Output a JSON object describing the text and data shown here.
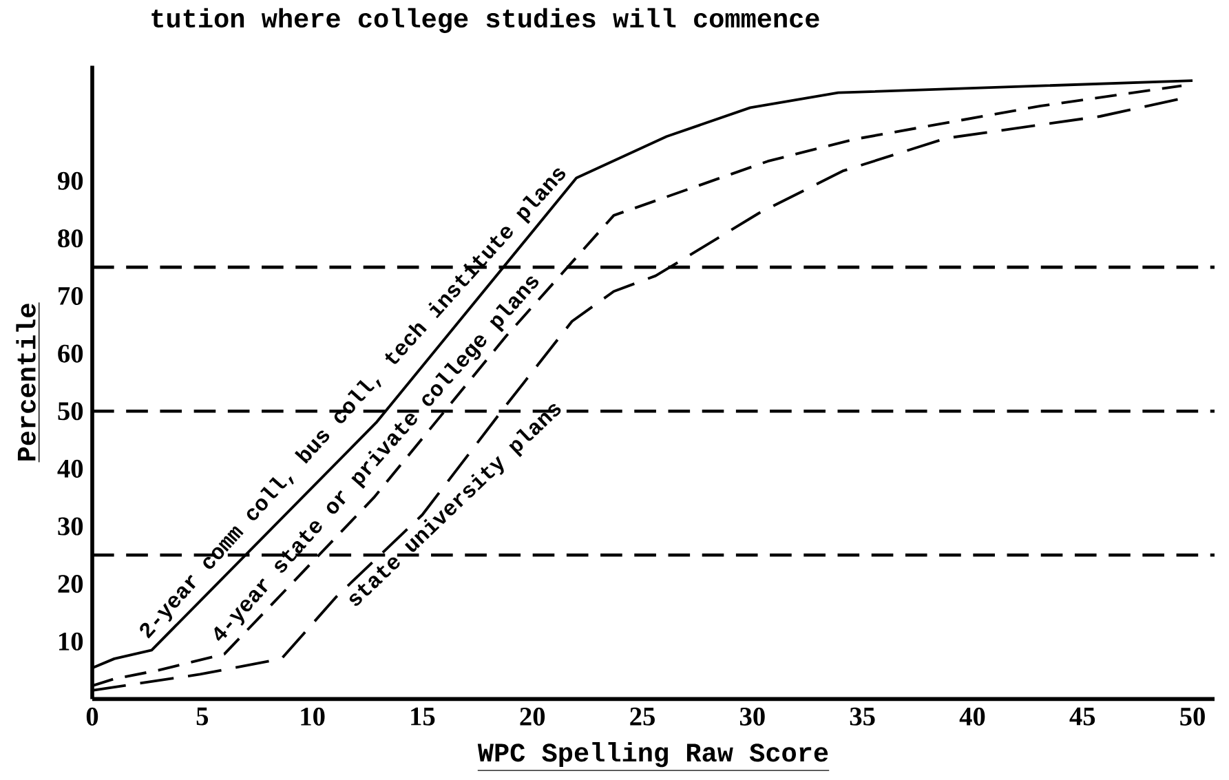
{
  "chart_data": {
    "type": "line",
    "title": "tution where college studies will commence",
    "xlabel": "WPC Spelling Raw Score",
    "ylabel": "Percentile",
    "xlim": [
      0,
      51
    ],
    "ylim": [
      0,
      110
    ],
    "xticks": [
      0,
      5,
      10,
      15,
      20,
      25,
      30,
      35,
      40,
      45,
      50
    ],
    "yticks": [
      10,
      20,
      30,
      40,
      50,
      60,
      70,
      80,
      90
    ],
    "grid": false,
    "marker": "none",
    "ref_lines": [
      {
        "axis": "y",
        "value": 25,
        "line_style": "dashed",
        "color": "#000000"
      },
      {
        "axis": "y",
        "value": 50,
        "line_style": "dashed",
        "color": "#000000"
      },
      {
        "axis": "y",
        "value": 75,
        "line_style": "dashed",
        "color": "#000000"
      }
    ],
    "series": [
      {
        "name": "2-year comm coll, bus coll, tech institute plans",
        "color": "#000000",
        "line_style": "solid",
        "x": [
          0,
          1,
          2.7,
          12.9,
          22,
          26.1,
          29.9,
          33.9,
          50
        ],
        "values": [
          5.4,
          7,
          8.5,
          48,
          90.5,
          97.7,
          102.7,
          105.3,
          107.4
        ]
      },
      {
        "name": "4-year state or private college plans",
        "color": "#000000",
        "line_style": "dashed",
        "x": [
          0,
          1,
          3,
          6,
          12.8,
          18.8,
          23.7,
          30.7,
          34.6,
          43.1,
          49.5
        ],
        "values": [
          2.3,
          3.5,
          5,
          7.8,
          35,
          63,
          84,
          93.4,
          97.2,
          103,
          106.5
        ]
      },
      {
        "name": "state university plans",
        "color": "#000000",
        "line_style": "dashed",
        "x": [
          0,
          4.9,
          8.6,
          11.1,
          15,
          18.8,
          21.8,
          23.7,
          25.6,
          30.3,
          34.1,
          38.8,
          45.8,
          49.5
        ],
        "values": [
          1.5,
          4.3,
          7,
          17.8,
          32,
          51,
          65.6,
          70.8,
          73.5,
          84.4,
          91.7,
          97.4,
          101.2,
          104.3
        ]
      }
    ]
  }
}
